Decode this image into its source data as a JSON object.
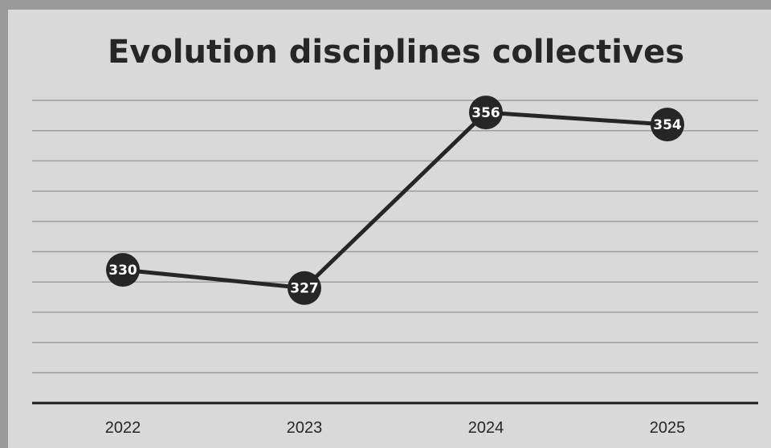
{
  "chart_data": {
    "type": "line",
    "title": "Evolution disciplines collectives",
    "xlabel": "",
    "ylabel": "",
    "categories": [
      "2022",
      "2023",
      "2024",
      "2025"
    ],
    "series": [
      {
        "values": [
          330,
          327,
          356,
          354
        ]
      }
    ],
    "data_labels": [
      "330",
      "327",
      "356",
      "354"
    ],
    "ylim": [
      308,
      358
    ],
    "grid": true,
    "legend": "none",
    "colors": {
      "background": "#d9d9d9",
      "line": "#262626",
      "grid": "#9e9e9e",
      "label_text": "#ffffff"
    }
  }
}
